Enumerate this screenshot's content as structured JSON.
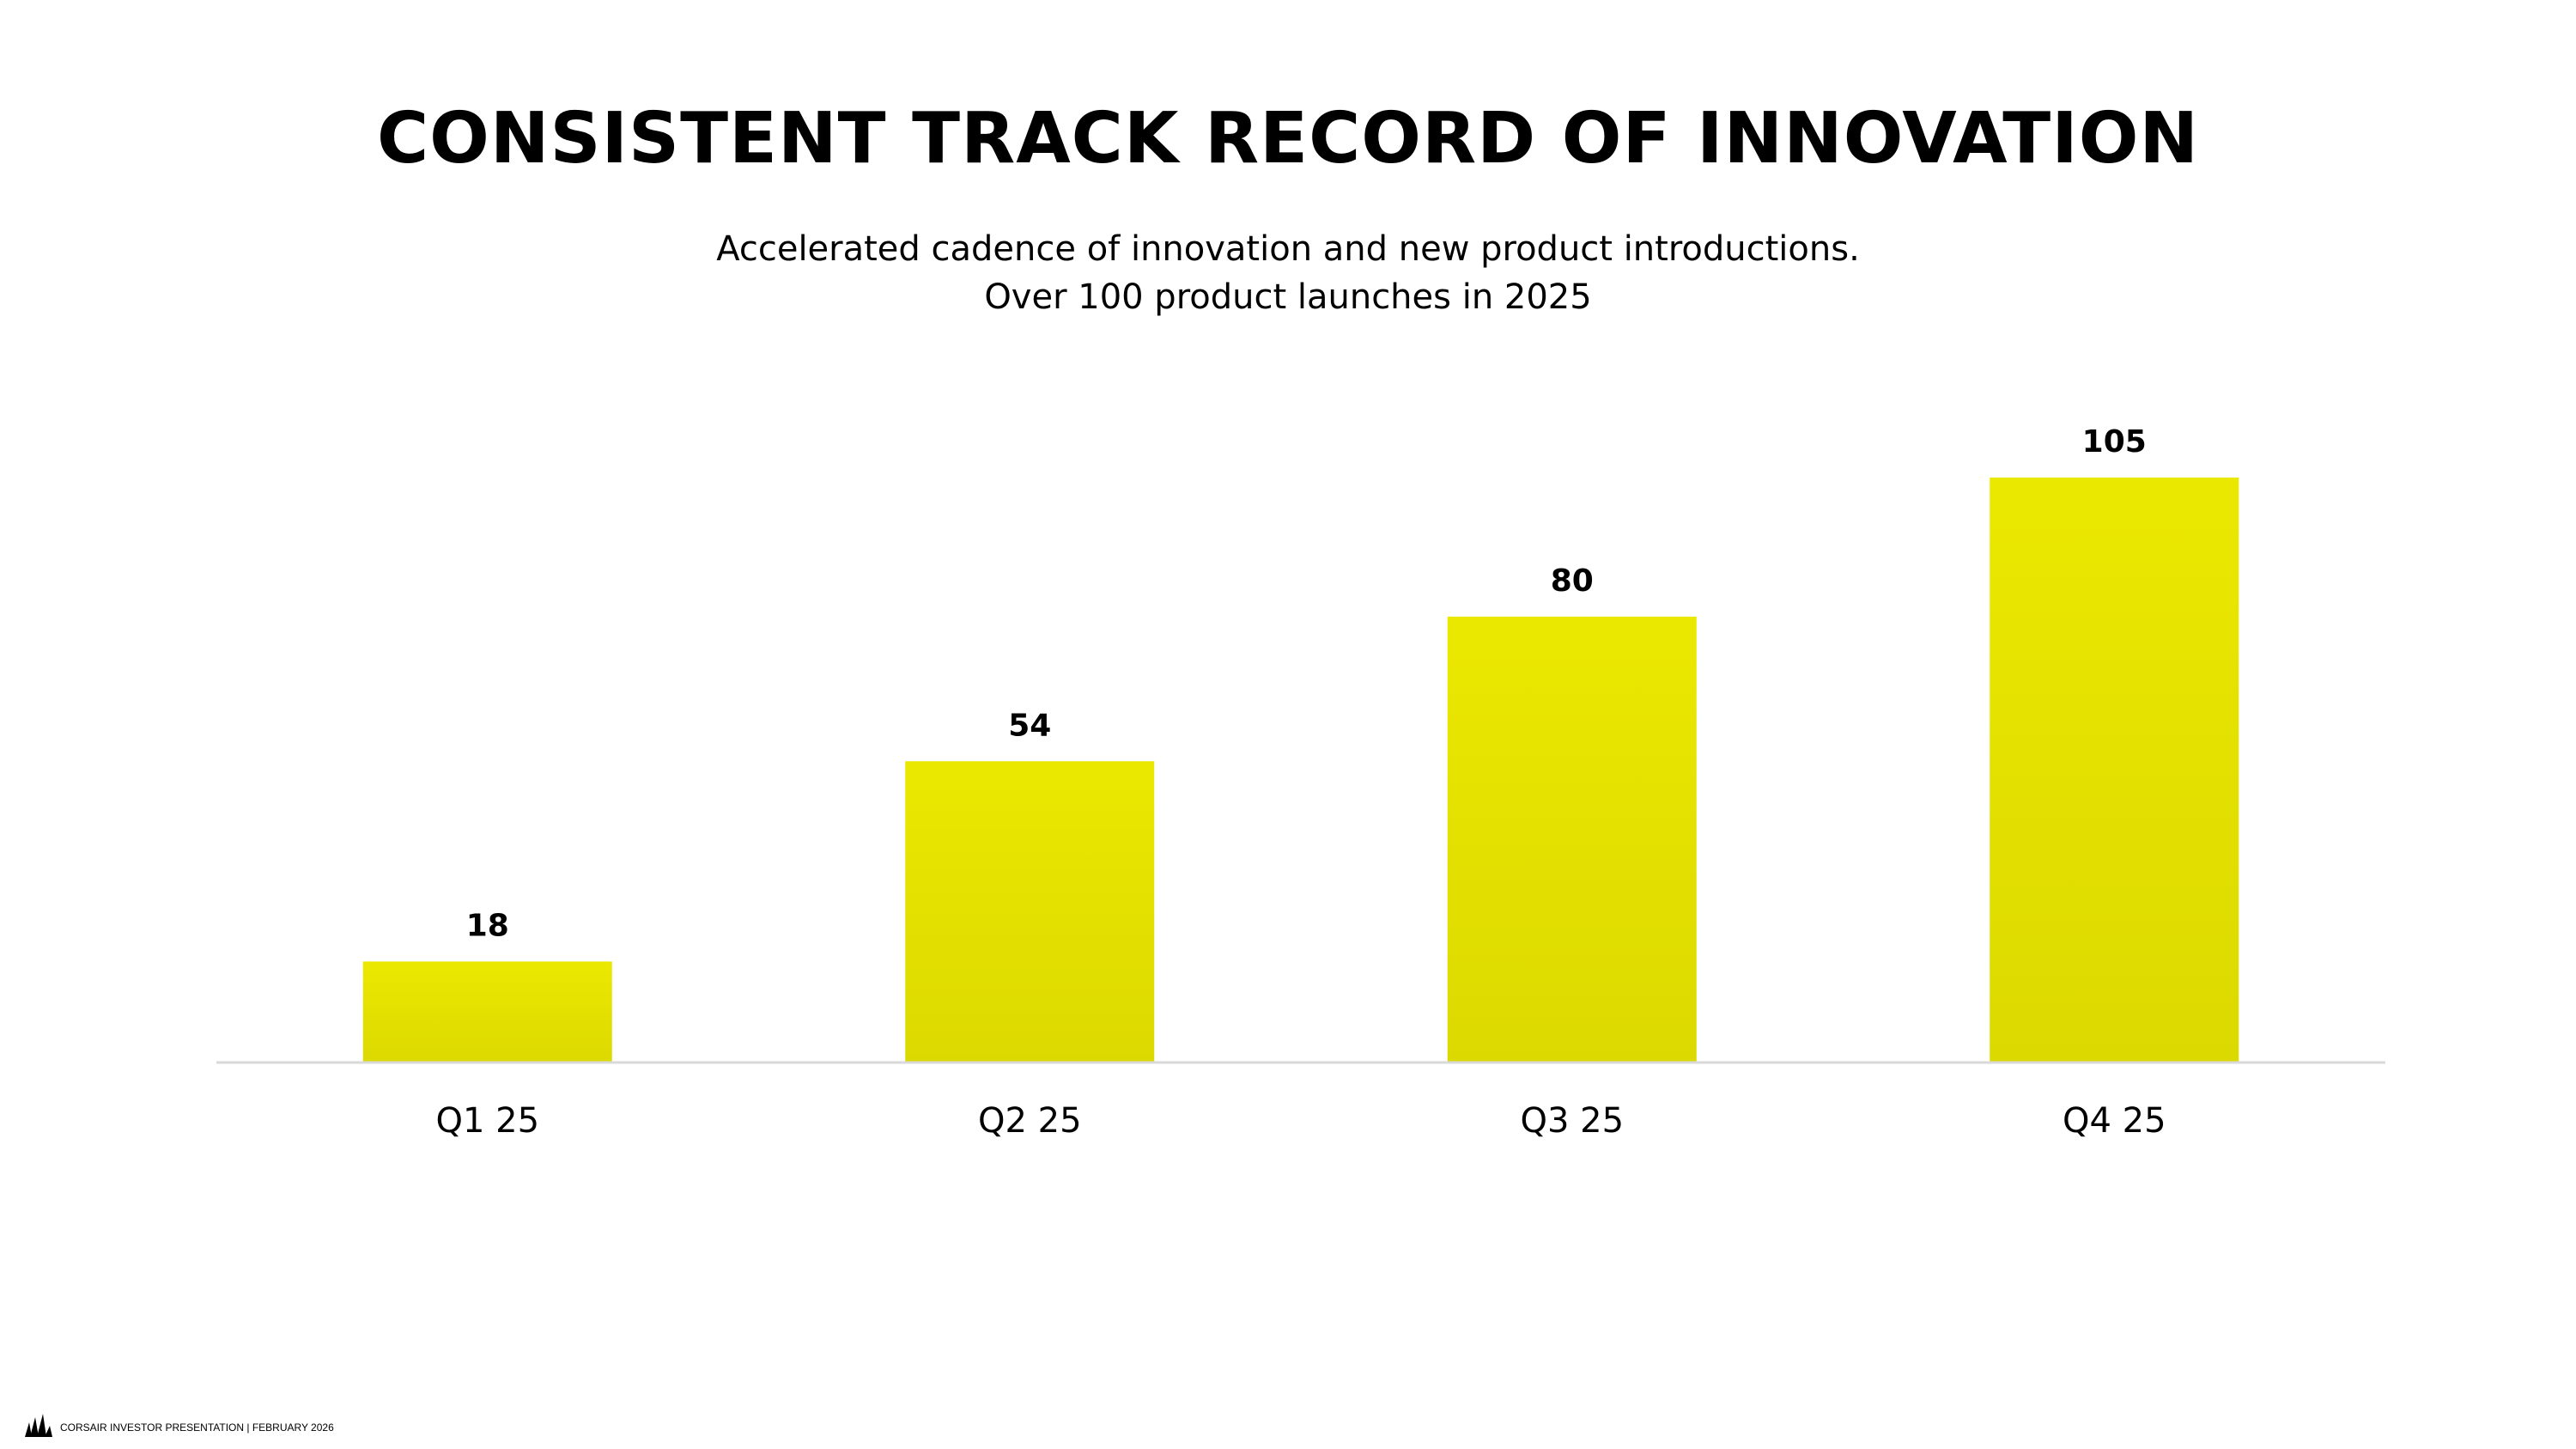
{
  "slide": {
    "title": "CONSISTENT TRACK RECORD OF INNOVATION",
    "subtitle_line1": "Accelerated cadence of innovation and new product introductions.",
    "subtitle_line2": "Over 100 product launches in 2025"
  },
  "footer": {
    "logo_icon": "corsair-sails-icon",
    "text": "CORSAIR INVESTOR PRESENTATION | FEBRUARY 2026"
  },
  "colors": {
    "bar_top": "#ebe800",
    "bar_bottom": "#dcd900",
    "baseline": "#d9d9d9",
    "text": "#000000"
  },
  "chart_data": {
    "type": "bar",
    "categories": [
      "Q1 25",
      "Q2 25",
      "Q3 25",
      "Q4 25"
    ],
    "values": [
      18,
      54,
      80,
      105
    ],
    "title": "",
    "xlabel": "",
    "ylabel": "",
    "ylim": [
      0,
      105
    ],
    "grid": false,
    "legend": "none",
    "data_labels": true
  }
}
